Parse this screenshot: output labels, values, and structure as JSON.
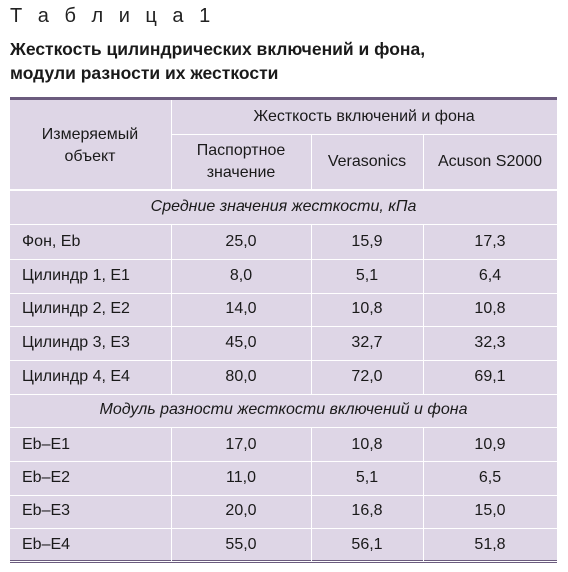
{
  "caption": "Т а б л и ц а   1",
  "title_line1": "Жесткость цилиндрических включений и фона,",
  "title_line2": "модули разности их жесткости",
  "header": {
    "object": "Измеряемый объект",
    "group": "Жесткость включений и фона",
    "col1": "Паспортное значение",
    "col2": "Verasonics",
    "col3": "Acuson S2000"
  },
  "section1": "Средние значения жесткости, кПа",
  "rows1": [
    {
      "label": "Фон, Eb",
      "v1": "25,0",
      "v2": "15,9",
      "v3": "17,3"
    },
    {
      "label": "Цилиндр 1, E1",
      "v1": "8,0",
      "v2": "5,1",
      "v3": "6,4"
    },
    {
      "label": "Цилиндр 2, E2",
      "v1": "14,0",
      "v2": "10,8",
      "v3": "10,8"
    },
    {
      "label": "Цилиндр 3, E3",
      "v1": "45,0",
      "v2": "32,7",
      "v3": "32,3"
    },
    {
      "label": "Цилиндр 4, E4",
      "v1": "80,0",
      "v2": "72,0",
      "v3": "69,1"
    }
  ],
  "section2": "Модуль разности жесткости включений и фона",
  "rows2": [
    {
      "label": "Eb–E1",
      "v1": "17,0",
      "v2": "10,8",
      "v3": "10,9"
    },
    {
      "label": "Eb–E2",
      "v1": "11,0",
      "v2": "5,1",
      "v3": "6,5"
    },
    {
      "label": "Eb–E3",
      "v1": "20,0",
      "v2": "16,8",
      "v3": "15,0"
    },
    {
      "label": "Eb–E4",
      "v1": "55,0",
      "v2": "56,1",
      "v3": "51,8"
    }
  ]
}
